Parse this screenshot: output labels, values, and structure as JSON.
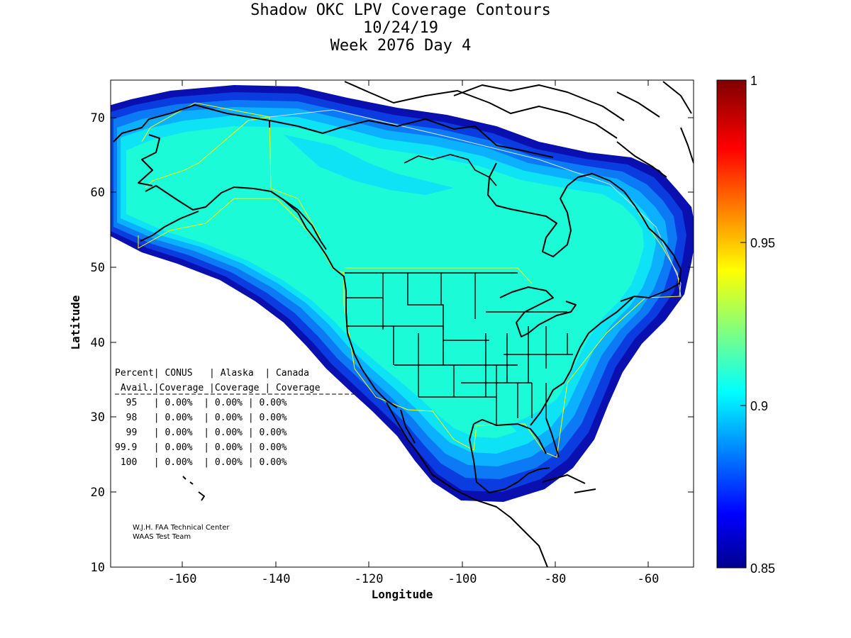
{
  "title": [
    "Shadow OKC LPV Coverage Contours",
    "10/24/19",
    "Week 2076 Day 4"
  ],
  "xlabel": "Longitude",
  "ylabel": "Latitude",
  "xticks": [
    "-160",
    "-140",
    "-120",
    "-100",
    "-80",
    "-60"
  ],
  "yticks": [
    "10",
    "20",
    "30",
    "40",
    "50",
    "60",
    "70"
  ],
  "colorbar": {
    "ticks": [
      "0.85",
      "0.9",
      "0.95",
      "1"
    ],
    "range": [
      0.85,
      1
    ],
    "colormap": "jet"
  },
  "colors": {
    "background": "#ffffff",
    "coverage_fill": "#1bfbd8",
    "service_boundary": "#ffff00",
    "coastline": "#000000"
  },
  "table": {
    "header1": "Percent| CONUS   | Alaska  | Canada",
    "header2": " Avail.|Coverage |Coverage | Coverage",
    "rows": [
      "  95   | 0.00%  | 0.00% | 0.00%",
      "  98   | 0.00%  | 0.00% | 0.00%",
      "  99   | 0.00%  | 0.00% | 0.00%",
      "99.9   | 0.00%  | 0.00% | 0.00%",
      " 100   | 0.00%  | 0.00% | 0.00%"
    ]
  },
  "credit": [
    "W.J.H. FAA Technical Center",
    "WAAS Test Team"
  ],
  "chart_data": {
    "type": "heatmap",
    "title": "Shadow OKC LPV Coverage Contours",
    "subtitle": [
      "10/24/19",
      "Week 2076 Day 4"
    ],
    "xlabel": "Longitude",
    "ylabel": "Latitude",
    "xlim": [
      -175,
      -50
    ],
    "ylim": [
      10,
      75
    ],
    "color_range": [
      0.85,
      1
    ],
    "colormap": "jet",
    "coverage_levels": [
      0.85,
      0.86,
      0.87,
      0.88,
      0.89,
      0.9
    ],
    "interior_value": 0.9
  }
}
